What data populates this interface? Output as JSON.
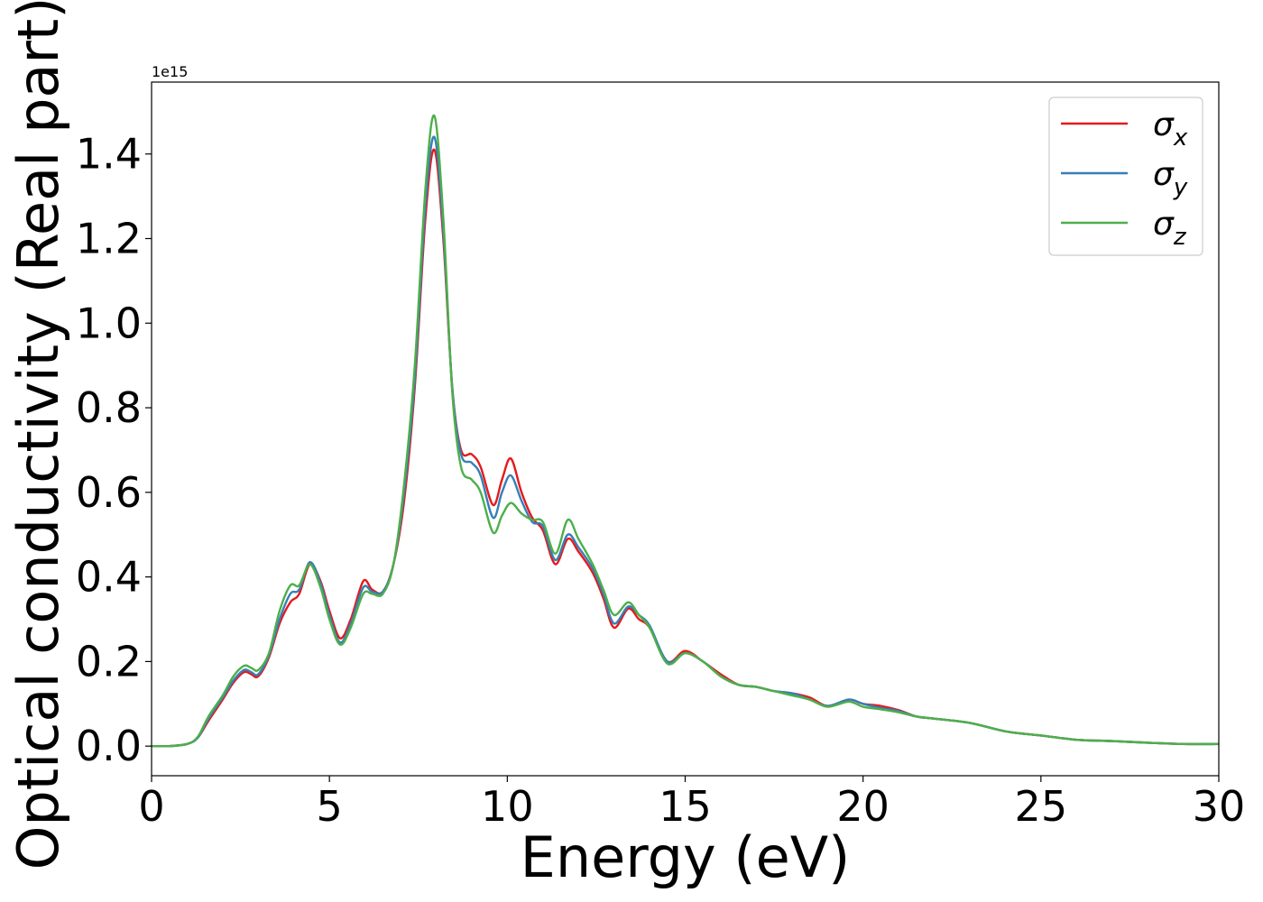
{
  "chart_data": {
    "type": "line",
    "xlabel": "Energy (eV)",
    "ylabel": "Optical conductivity (Real part)",
    "offset_label": "1e15",
    "scale_factor": 1000000000000000.0,
    "xlim": [
      0,
      30
    ],
    "ylim": [
      -0.07,
      1.57
    ],
    "xticks": [
      0,
      5,
      10,
      15,
      20,
      25,
      30
    ],
    "yticks": [
      0.0,
      0.2,
      0.4,
      0.6,
      0.8,
      1.0,
      1.2,
      1.4
    ],
    "ytick_labels": [
      "0.0",
      "0.2",
      "0.4",
      "0.6",
      "0.8",
      "1.0",
      "1.2",
      "1.4"
    ],
    "grid": false,
    "legend_position": "top-right",
    "series": [
      {
        "name": "σx",
        "legend_symbol": "σ",
        "legend_subscript": "x",
        "color": "#e41a1c",
        "x": [
          0,
          0.5,
          1.0,
          1.3,
          1.6,
          2.0,
          2.3,
          2.6,
          2.8,
          3.0,
          3.3,
          3.6,
          3.9,
          4.15,
          4.45,
          4.75,
          5.0,
          5.3,
          5.6,
          5.95,
          6.2,
          6.5,
          6.8,
          7.1,
          7.4,
          7.7,
          7.95,
          8.2,
          8.45,
          8.7,
          9.0,
          9.25,
          9.6,
          9.85,
          10.1,
          10.4,
          10.7,
          11.0,
          11.35,
          11.7,
          12.0,
          12.4,
          12.7,
          13.0,
          13.4,
          13.7,
          14.0,
          14.5,
          15.0,
          15.5,
          16.0,
          16.5,
          17.0,
          17.5,
          18.0,
          18.5,
          19.0,
          19.6,
          20.0,
          20.5,
          21.0,
          21.5,
          22.0,
          23.0,
          24.0,
          25.0,
          26.0,
          27.0,
          28.0,
          29.0,
          30.0
        ],
        "y": [
          0.0,
          0.0,
          0.005,
          0.02,
          0.06,
          0.11,
          0.15,
          0.175,
          0.17,
          0.165,
          0.21,
          0.29,
          0.34,
          0.36,
          0.43,
          0.39,
          0.32,
          0.255,
          0.3,
          0.39,
          0.37,
          0.365,
          0.43,
          0.58,
          0.85,
          1.25,
          1.41,
          1.2,
          0.85,
          0.7,
          0.69,
          0.66,
          0.57,
          0.63,
          0.68,
          0.6,
          0.54,
          0.51,
          0.43,
          0.49,
          0.46,
          0.41,
          0.35,
          0.28,
          0.325,
          0.3,
          0.28,
          0.2,
          0.225,
          0.2,
          0.17,
          0.145,
          0.14,
          0.13,
          0.125,
          0.115,
          0.095,
          0.11,
          0.1,
          0.095,
          0.085,
          0.07,
          0.065,
          0.055,
          0.035,
          0.025,
          0.015,
          0.012,
          0.008,
          0.005,
          0.005
        ]
      },
      {
        "name": "σy",
        "legend_symbol": "σ",
        "legend_subscript": "y",
        "color": "#377eb8",
        "x": [
          0,
          0.5,
          1.0,
          1.3,
          1.6,
          2.0,
          2.3,
          2.6,
          2.8,
          3.0,
          3.3,
          3.6,
          3.9,
          4.15,
          4.45,
          4.75,
          5.0,
          5.3,
          5.6,
          5.95,
          6.2,
          6.5,
          6.8,
          7.1,
          7.4,
          7.7,
          7.95,
          8.2,
          8.45,
          8.7,
          9.0,
          9.25,
          9.6,
          9.85,
          10.1,
          10.4,
          10.7,
          11.0,
          11.35,
          11.7,
          12.0,
          12.4,
          12.7,
          13.0,
          13.4,
          13.7,
          14.0,
          14.5,
          15.0,
          15.5,
          16.0,
          16.5,
          17.0,
          17.5,
          18.0,
          18.5,
          19.0,
          19.6,
          20.0,
          20.5,
          21.0,
          21.5,
          22.0,
          23.0,
          24.0,
          25.0,
          26.0,
          27.0,
          28.0,
          29.0,
          30.0
        ],
        "y": [
          0.0,
          0.0,
          0.005,
          0.02,
          0.065,
          0.115,
          0.155,
          0.18,
          0.175,
          0.17,
          0.215,
          0.3,
          0.36,
          0.37,
          0.435,
          0.385,
          0.31,
          0.245,
          0.29,
          0.375,
          0.365,
          0.365,
          0.43,
          0.6,
          0.87,
          1.28,
          1.44,
          1.22,
          0.85,
          0.69,
          0.67,
          0.64,
          0.54,
          0.6,
          0.64,
          0.58,
          0.53,
          0.52,
          0.44,
          0.5,
          0.47,
          0.42,
          0.36,
          0.29,
          0.33,
          0.31,
          0.285,
          0.2,
          0.22,
          0.2,
          0.165,
          0.145,
          0.14,
          0.13,
          0.125,
          0.11,
          0.095,
          0.11,
          0.1,
          0.09,
          0.083,
          0.07,
          0.065,
          0.055,
          0.035,
          0.025,
          0.015,
          0.012,
          0.008,
          0.005,
          0.005
        ]
      },
      {
        "name": "σz",
        "legend_symbol": "σ",
        "legend_subscript": "z",
        "color": "#4daf4a",
        "x": [
          0,
          0.5,
          1.0,
          1.3,
          1.6,
          2.0,
          2.3,
          2.6,
          2.8,
          3.0,
          3.3,
          3.6,
          3.9,
          4.15,
          4.45,
          4.75,
          5.0,
          5.3,
          5.6,
          5.95,
          6.2,
          6.5,
          6.8,
          7.1,
          7.4,
          7.7,
          7.95,
          8.2,
          8.45,
          8.7,
          9.0,
          9.25,
          9.6,
          9.85,
          10.1,
          10.4,
          10.7,
          11.0,
          11.35,
          11.7,
          12.0,
          12.4,
          12.7,
          13.0,
          13.4,
          13.7,
          14.0,
          14.5,
          15.0,
          15.5,
          16.0,
          16.5,
          17.0,
          17.5,
          18.0,
          18.5,
          19.0,
          19.6,
          20.0,
          20.5,
          21.0,
          21.5,
          22.0,
          23.0,
          24.0,
          25.0,
          26.0,
          27.0,
          28.0,
          29.0,
          30.0
        ],
        "y": [
          0.0,
          0.0,
          0.005,
          0.022,
          0.07,
          0.12,
          0.165,
          0.19,
          0.185,
          0.18,
          0.22,
          0.32,
          0.38,
          0.38,
          0.43,
          0.375,
          0.3,
          0.24,
          0.28,
          0.36,
          0.36,
          0.36,
          0.43,
          0.62,
          0.9,
          1.32,
          1.49,
          1.25,
          0.84,
          0.66,
          0.63,
          0.6,
          0.505,
          0.545,
          0.575,
          0.55,
          0.535,
          0.53,
          0.455,
          0.535,
          0.49,
          0.43,
          0.37,
          0.31,
          0.34,
          0.31,
          0.28,
          0.195,
          0.22,
          0.2,
          0.165,
          0.145,
          0.14,
          0.13,
          0.12,
          0.11,
          0.093,
          0.105,
          0.093,
          0.087,
          0.08,
          0.07,
          0.065,
          0.055,
          0.035,
          0.025,
          0.015,
          0.012,
          0.008,
          0.005,
          0.005
        ]
      }
    ]
  }
}
